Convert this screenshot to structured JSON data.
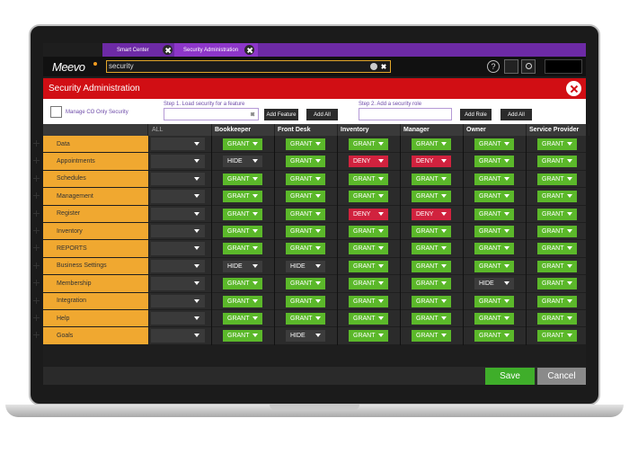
{
  "tabs": [
    "Smart Center",
    "Security Administration"
  ],
  "topbar": {
    "logo": "Meevo",
    "search": "security",
    "help": "?"
  },
  "header": {
    "title": "Security Administration"
  },
  "controls": {
    "manage": "Manage CO Only Security",
    "step1": {
      "label": "Step 1. Load security for a feature",
      "buttons": [
        "Add Feature",
        "Add All"
      ]
    },
    "step2": {
      "label": "Step 2. Add a security role",
      "buttons": [
        "Add Role",
        "Add All"
      ]
    }
  },
  "table": {
    "columns": [
      "ALL",
      "Bookkeeper",
      "Front Desk",
      "Inventory",
      "Manager",
      "Owner",
      "Service Provider"
    ],
    "rows": [
      {
        "name": "Data",
        "cells": [
          {
            "value": "GRANT",
            "color": "#5bb82a"
          },
          {
            "value": "GRANT",
            "color": "#5bb82a"
          },
          {
            "value": "GRANT",
            "color": "#5bb82a"
          },
          {
            "value": "GRANT",
            "color": "#5bb82a"
          },
          {
            "value": "GRANT",
            "color": "#5bb82a"
          },
          {
            "value": "GRANT",
            "color": "#5bb82a"
          }
        ]
      },
      {
        "name": "Appointments",
        "cells": [
          {
            "value": "HIDE",
            "color": "#3c3c3c"
          },
          {
            "value": "GRANT",
            "color": "#5bb82a"
          },
          {
            "value": "DENY",
            "color": "#d1223e"
          },
          {
            "value": "DENY",
            "color": "#d1223e"
          },
          {
            "value": "GRANT",
            "color": "#5bb82a"
          },
          {
            "value": "GRANT",
            "color": "#5bb82a"
          }
        ]
      },
      {
        "name": "Schedules",
        "cells": [
          {
            "value": "GRANT",
            "color": "#5bb82a"
          },
          {
            "value": "GRANT",
            "color": "#5bb82a"
          },
          {
            "value": "GRANT",
            "color": "#5bb82a"
          },
          {
            "value": "GRANT",
            "color": "#5bb82a"
          },
          {
            "value": "GRANT",
            "color": "#5bb82a"
          },
          {
            "value": "GRANT",
            "color": "#5bb82a"
          }
        ]
      },
      {
        "name": "Management",
        "cells": [
          {
            "value": "GRANT",
            "color": "#5bb82a"
          },
          {
            "value": "GRANT",
            "color": "#5bb82a"
          },
          {
            "value": "GRANT",
            "color": "#5bb82a"
          },
          {
            "value": "GRANT",
            "color": "#5bb82a"
          },
          {
            "value": "GRANT",
            "color": "#5bb82a"
          },
          {
            "value": "GRANT",
            "color": "#5bb82a"
          }
        ]
      },
      {
        "name": "Register",
        "cells": [
          {
            "value": "GRANT",
            "color": "#5bb82a"
          },
          {
            "value": "GRANT",
            "color": "#5bb82a"
          },
          {
            "value": "DENY",
            "color": "#d1223e"
          },
          {
            "value": "DENY",
            "color": "#d1223e"
          },
          {
            "value": "GRANT",
            "color": "#5bb82a"
          },
          {
            "value": "GRANT",
            "color": "#5bb82a"
          }
        ]
      },
      {
        "name": "Inventory",
        "cells": [
          {
            "value": "GRANT",
            "color": "#5bb82a"
          },
          {
            "value": "GRANT",
            "color": "#5bb82a"
          },
          {
            "value": "GRANT",
            "color": "#5bb82a"
          },
          {
            "value": "GRANT",
            "color": "#5bb82a"
          },
          {
            "value": "GRANT",
            "color": "#5bb82a"
          },
          {
            "value": "GRANT",
            "color": "#5bb82a"
          }
        ]
      },
      {
        "name": "REPORTS",
        "cells": [
          {
            "value": "GRANT",
            "color": "#5bb82a"
          },
          {
            "value": "GRANT",
            "color": "#5bb82a"
          },
          {
            "value": "GRANT",
            "color": "#5bb82a"
          },
          {
            "value": "GRANT",
            "color": "#5bb82a"
          },
          {
            "value": "GRANT",
            "color": "#5bb82a"
          },
          {
            "value": "GRANT",
            "color": "#5bb82a"
          }
        ]
      },
      {
        "name": "Business Settings",
        "cells": [
          {
            "value": "HIDE",
            "color": "#3c3c3c"
          },
          {
            "value": "HIDE",
            "color": "#3c3c3c"
          },
          {
            "value": "GRANT",
            "color": "#5bb82a"
          },
          {
            "value": "GRANT",
            "color": "#5bb82a"
          },
          {
            "value": "GRANT",
            "color": "#5bb82a"
          },
          {
            "value": "GRANT",
            "color": "#5bb82a"
          }
        ]
      },
      {
        "name": "Membership",
        "cells": [
          {
            "value": "GRANT",
            "color": "#5bb82a"
          },
          {
            "value": "GRANT",
            "color": "#5bb82a"
          },
          {
            "value": "GRANT",
            "color": "#5bb82a"
          },
          {
            "value": "GRANT",
            "color": "#5bb82a"
          },
          {
            "value": "HIDE",
            "color": "#3c3c3c"
          },
          {
            "value": "GRANT",
            "color": "#5bb82a"
          }
        ]
      },
      {
        "name": "Integration",
        "cells": [
          {
            "value": "GRANT",
            "color": "#5bb82a"
          },
          {
            "value": "GRANT",
            "color": "#5bb82a"
          },
          {
            "value": "GRANT",
            "color": "#5bb82a"
          },
          {
            "value": "GRANT",
            "color": "#5bb82a"
          },
          {
            "value": "GRANT",
            "color": "#5bb82a"
          },
          {
            "value": "GRANT",
            "color": "#5bb82a"
          }
        ]
      },
      {
        "name": "Help",
        "cells": [
          {
            "value": "GRANT",
            "color": "#5bb82a"
          },
          {
            "value": "GRANT",
            "color": "#5bb82a"
          },
          {
            "value": "GRANT",
            "color": "#5bb82a"
          },
          {
            "value": "GRANT",
            "color": "#5bb82a"
          },
          {
            "value": "GRANT",
            "color": "#5bb82a"
          },
          {
            "value": "GRANT",
            "color": "#5bb82a"
          }
        ]
      },
      {
        "name": "Goals",
        "cells": [
          {
            "value": "GRANT",
            "color": "#5bb82a"
          },
          {
            "value": "HIDE",
            "color": "#3c3c3c"
          },
          {
            "value": "GRANT",
            "color": "#5bb82a"
          },
          {
            "value": "GRANT",
            "color": "#5bb82a"
          },
          {
            "value": "GRANT",
            "color": "#5bb82a"
          },
          {
            "value": "GRANT",
            "color": "#5bb82a"
          }
        ]
      }
    ]
  },
  "footer": {
    "save": "Save",
    "cancel": "Cancel"
  }
}
